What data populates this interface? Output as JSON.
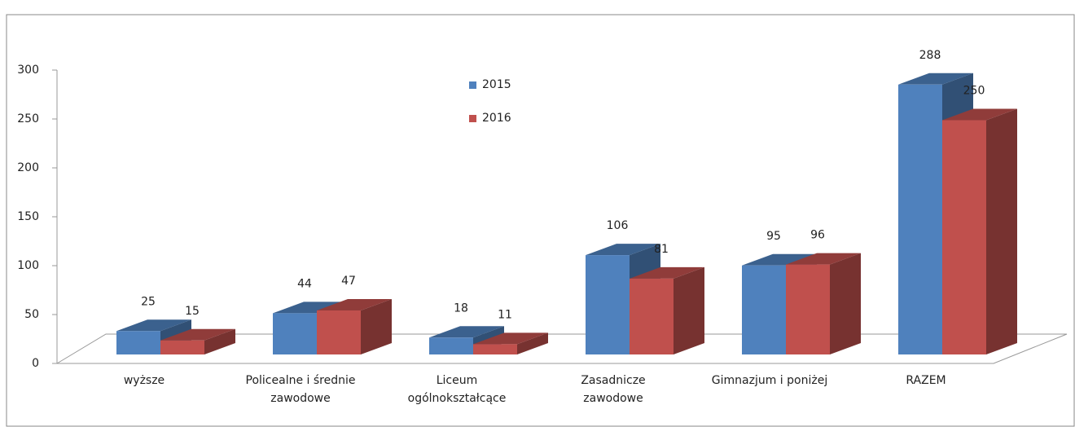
{
  "chart_data": {
    "type": "bar3d",
    "categories": [
      "wyższe",
      "Policealne i średnie zawodowe",
      "Liceum ogólnokształcące",
      "Zasadnicze zawodowe",
      "Gimnazjum i poniżej",
      "RAZEM"
    ],
    "series": [
      {
        "name": "2015",
        "color": "#4f81bd",
        "values": [
          25,
          44,
          18,
          106,
          95,
          288
        ]
      },
      {
        "name": "2016",
        "color": "#c0504d",
        "values": [
          15,
          47,
          11,
          81,
          96,
          250
        ]
      }
    ],
    "ylim": [
      0,
      300
    ],
    "yticks": [
      0,
      50,
      100,
      150,
      200,
      250,
      300
    ]
  }
}
